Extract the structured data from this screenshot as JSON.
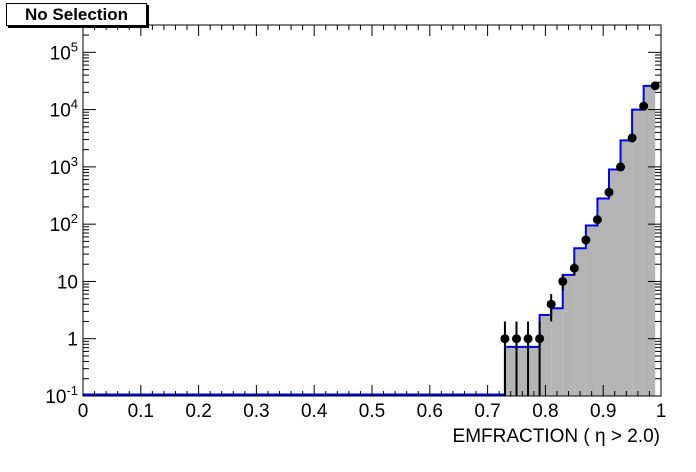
{
  "title": "No Selection",
  "chart_data": {
    "type": "histogram",
    "title": "No Selection",
    "xlabel": "EMFRACTION ( η > 2.0)",
    "ylabel": "",
    "log_y": true,
    "xlim": [
      0,
      1
    ],
    "ylim": [
      0.1,
      300000
    ],
    "grid": false,
    "bin_width": 0.02,
    "x_ticks": [
      "0",
      "0.1",
      "0.2",
      "0.3",
      "0.4",
      "0.5",
      "0.6",
      "0.7",
      "0.8",
      "0.9",
      "1"
    ],
    "y_ticks": [
      {
        "value": 0.1,
        "base": "10",
        "exp": "-1"
      },
      {
        "value": 1,
        "text": "1"
      },
      {
        "value": 10,
        "text": "10"
      },
      {
        "value": 100,
        "base": "10",
        "exp": "2"
      },
      {
        "value": 1000,
        "base": "10",
        "exp": "3"
      },
      {
        "value": 10000,
        "base": "10",
        "exp": "4"
      },
      {
        "value": 100000,
        "base": "10",
        "exp": "5"
      }
    ],
    "series": [
      {
        "kind": "filled-histogram",
        "color": "#b4b4b4",
        "bins": [
          {
            "x": 0.74,
            "y": 0.72
          },
          {
            "x": 0.76,
            "y": 0.72
          },
          {
            "x": 0.78,
            "y": 0.72
          },
          {
            "x": 0.8,
            "y": 2.6
          },
          {
            "x": 0.82,
            "y": 3.4
          },
          {
            "x": 0.84,
            "y": 13
          },
          {
            "x": 0.86,
            "y": 38
          },
          {
            "x": 0.88,
            "y": 95
          },
          {
            "x": 0.9,
            "y": 280
          },
          {
            "x": 0.92,
            "y": 900
          },
          {
            "x": 0.94,
            "y": 2900
          },
          {
            "x": 0.96,
            "y": 10000
          },
          {
            "x": 0.98,
            "y": 26000
          }
        ]
      },
      {
        "kind": "line-histogram",
        "color": "#0000ee",
        "bins": [
          {
            "x": 0.74,
            "y": 0.72
          },
          {
            "x": 0.76,
            "y": 0.72
          },
          {
            "x": 0.78,
            "y": 0.72
          },
          {
            "x": 0.8,
            "y": 2.6
          },
          {
            "x": 0.82,
            "y": 3.4
          },
          {
            "x": 0.84,
            "y": 13
          },
          {
            "x": 0.86,
            "y": 38
          },
          {
            "x": 0.88,
            "y": 95
          },
          {
            "x": 0.9,
            "y": 280
          },
          {
            "x": 0.92,
            "y": 900
          },
          {
            "x": 0.94,
            "y": 2900
          },
          {
            "x": 0.96,
            "y": 10000
          },
          {
            "x": 0.98,
            "y": 26000
          }
        ]
      },
      {
        "kind": "data-points",
        "color": "#000000",
        "points": [
          {
            "x": 0.73,
            "y": 1
          },
          {
            "x": 0.75,
            "y": 1
          },
          {
            "x": 0.77,
            "y": 1
          },
          {
            "x": 0.79,
            "y": 1
          },
          {
            "x": 0.81,
            "y": 4
          },
          {
            "x": 0.83,
            "y": 10
          },
          {
            "x": 0.85,
            "y": 17
          },
          {
            "x": 0.87,
            "y": 53
          },
          {
            "x": 0.89,
            "y": 120
          },
          {
            "x": 0.91,
            "y": 360
          },
          {
            "x": 0.93,
            "y": 1000
          },
          {
            "x": 0.95,
            "y": 3200
          },
          {
            "x": 0.97,
            "y": 11500
          },
          {
            "x": 0.99,
            "y": 26000
          }
        ]
      }
    ]
  }
}
